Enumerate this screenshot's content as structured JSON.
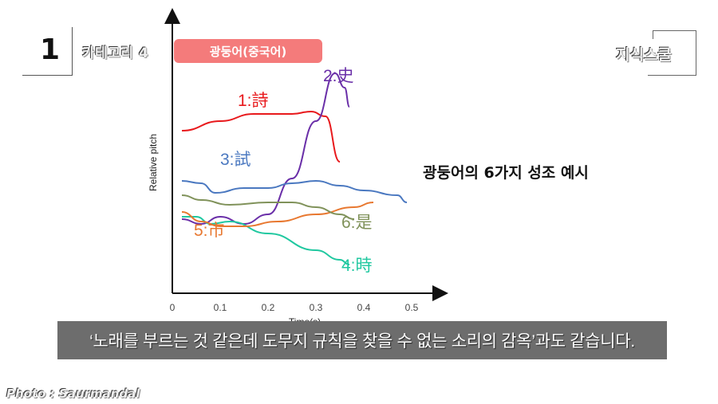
{
  "header": {
    "episode_number": "1",
    "category": "카테고리 4",
    "tag": "광둥어(중국어)",
    "logo": "지식스쿨"
  },
  "side_title": "광둥어의 6가지 성조 예시",
  "subtitle": "‘노래를 부르는 것 같은데 도무지 규칙을 찾을 수 없는 소리의 감옥’과도 같습니다.",
  "credit": "Photo : Saurmandal",
  "chart_data": {
    "type": "line",
    "title": "",
    "xlabel": "Time(s)",
    "ylabel": "Relative pitch",
    "xlim": [
      0,
      0.55
    ],
    "x_ticks": [
      "0",
      "0.1",
      "0.2",
      "0.3",
      "0.4",
      "0.5"
    ],
    "grid": false,
    "legend": "inline labels",
    "series": [
      {
        "name": "1:詩",
        "number": "1",
        "char": "詩",
        "color": "#e8191c",
        "points": [
          [
            0.02,
            0.68
          ],
          [
            0.1,
            0.72
          ],
          [
            0.17,
            0.75
          ],
          [
            0.25,
            0.75
          ],
          [
            0.29,
            0.76
          ],
          [
            0.32,
            0.74
          ],
          [
            0.35,
            0.55
          ]
        ]
      },
      {
        "name": "2:史",
        "number": "2",
        "char": "史",
        "color": "#6a2fa8",
        "points": [
          [
            0.02,
            0.31
          ],
          [
            0.06,
            0.29
          ],
          [
            0.1,
            0.32
          ],
          [
            0.15,
            0.29
          ],
          [
            0.2,
            0.33
          ],
          [
            0.25,
            0.48
          ],
          [
            0.3,
            0.72
          ],
          [
            0.34,
            0.92
          ],
          [
            0.36,
            0.86
          ],
          [
            0.37,
            0.78
          ]
        ]
      },
      {
        "name": "3:試",
        "number": "3",
        "char": "試",
        "color": "#4a78c0",
        "points": [
          [
            0.02,
            0.47
          ],
          [
            0.06,
            0.46
          ],
          [
            0.09,
            0.42
          ],
          [
            0.15,
            0.44
          ],
          [
            0.2,
            0.44
          ],
          [
            0.25,
            0.46
          ],
          [
            0.3,
            0.47
          ],
          [
            0.35,
            0.45
          ],
          [
            0.4,
            0.43
          ],
          [
            0.47,
            0.41
          ],
          [
            0.49,
            0.38
          ]
        ]
      },
      {
        "name": "4:時",
        "number": "4",
        "char": "時",
        "color": "#20c8a0",
        "points": [
          [
            0.02,
            0.32
          ],
          [
            0.05,
            0.32
          ],
          [
            0.08,
            0.29
          ],
          [
            0.12,
            0.3
          ],
          [
            0.2,
            0.25
          ],
          [
            0.3,
            0.18
          ],
          [
            0.35,
            0.14
          ],
          [
            0.37,
            0.12
          ]
        ]
      },
      {
        "name": "5:市",
        "number": "5",
        "char": "市",
        "color": "#e87830",
        "points": [
          [
            0.02,
            0.34
          ],
          [
            0.06,
            0.3
          ],
          [
            0.1,
            0.28
          ],
          [
            0.15,
            0.28
          ],
          [
            0.22,
            0.3
          ],
          [
            0.3,
            0.33
          ],
          [
            0.38,
            0.36
          ],
          [
            0.42,
            0.38
          ]
        ]
      },
      {
        "name": "6:是",
        "number": "6",
        "char": "是",
        "color": "#80925a",
        "points": [
          [
            0.02,
            0.41
          ],
          [
            0.06,
            0.39
          ],
          [
            0.12,
            0.37
          ],
          [
            0.2,
            0.38
          ],
          [
            0.25,
            0.38
          ],
          [
            0.3,
            0.36
          ],
          [
            0.35,
            0.33
          ],
          [
            0.38,
            0.31
          ]
        ]
      }
    ]
  }
}
